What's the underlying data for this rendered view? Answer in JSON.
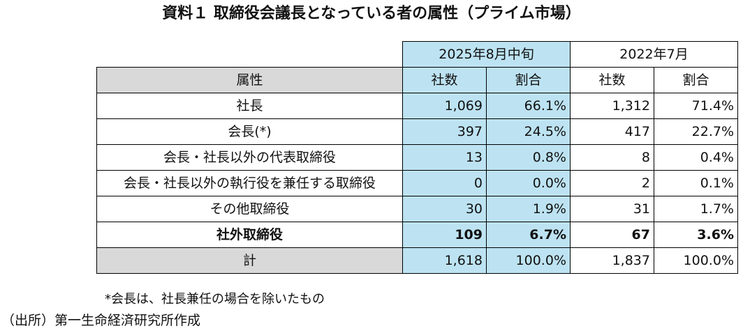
{
  "title": "資料１ 取締役会議長となっている者の属性（プライム市場）",
  "table": {
    "periods": [
      "2025年8月中旬",
      "2022年7月"
    ],
    "header": {
      "attribute": "属性",
      "count": "社数",
      "ratio": "割合"
    },
    "rows": [
      {
        "label": "社長",
        "c2025": "1,069",
        "r2025": "66.1%",
        "c2022": "1,312",
        "r2022": "71.4%"
      },
      {
        "label": "会長(*)",
        "c2025": "397",
        "r2025": "24.5%",
        "c2022": "417",
        "r2022": "22.7%"
      },
      {
        "label": "会長・社長以外の代表取締役",
        "c2025": "13",
        "r2025": "0.8%",
        "c2022": "8",
        "r2022": "0.4%"
      },
      {
        "label": "会長・社長以外の執行役を兼任する取締役",
        "c2025": "0",
        "r2025": "0.0%",
        "c2022": "2",
        "r2022": "0.1%"
      },
      {
        "label": "その他取締役",
        "c2025": "30",
        "r2025": "1.9%",
        "c2022": "31",
        "r2022": "1.7%"
      },
      {
        "label": "社外取締役",
        "c2025": "109",
        "r2025": "6.7%",
        "c2022": "67",
        "r2022": "3.6%"
      }
    ],
    "total": {
      "label": "計",
      "c2025": "1,618",
      "r2025": "100.0%",
      "c2022": "1,837",
      "r2022": "100.0%"
    }
  },
  "note": "*会長は、社長兼任の場合を除いたもの",
  "source": "（出所）第一生命経済研究所作成",
  "colors": {
    "highlight_2025": "#bde3f2",
    "header_grey": "#d9d9d9"
  }
}
